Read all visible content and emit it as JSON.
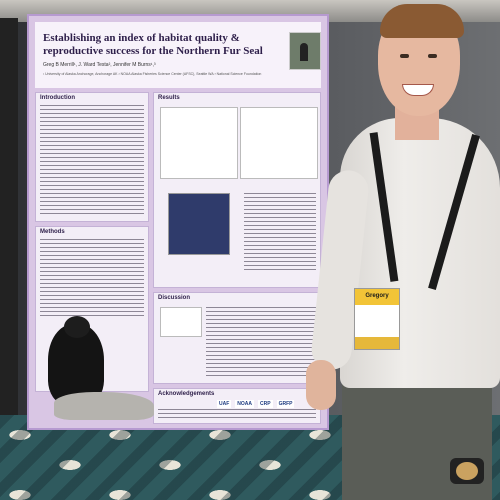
{
  "poster": {
    "title": "Establishing an index of habitat quality & reproductive success for the Northern Fur Seal",
    "authors": "Greg B Merrill¹, J. Ward Testa², Jennifer M Burns¹,³",
    "affiliations": "¹ University of Alaska Anchorage, Anchorage AK   ² NOAA Alaska Fisheries Science Center (AFSC), Seattle WA   ³ National Science Foundation",
    "sections": {
      "introduction": "Introduction",
      "results": "Results",
      "methods": "Methods",
      "discussion": "Discussion",
      "acknowledgements": "Acknowledgements"
    },
    "logos": [
      "UAF",
      "NOAA",
      "CRP",
      "GRFP"
    ]
  },
  "badge": {
    "name": "Gregory"
  },
  "colors": {
    "poster_bg": "#d9c6e4",
    "poster_title": "#2e1f4a",
    "badge_yellow": "#f2c437",
    "carpet_teal": "#2f5a5e"
  }
}
